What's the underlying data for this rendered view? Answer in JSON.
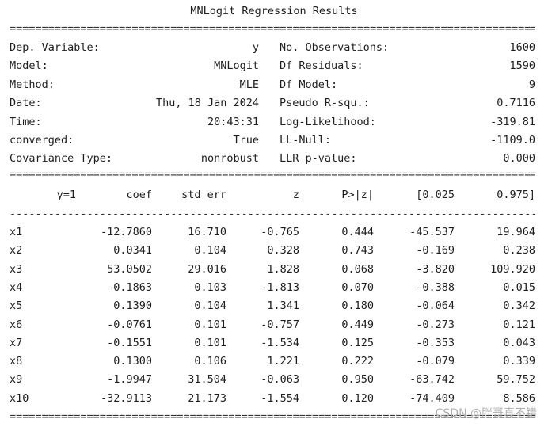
{
  "title": "MNLogit Regression Results",
  "summary_left": [
    {
      "label": "Dep. Variable:",
      "value": "y"
    },
    {
      "label": "Model:",
      "value": "MNLogit"
    },
    {
      "label": "Method:",
      "value": "MLE"
    },
    {
      "label": "Date:",
      "value": "Thu, 18 Jan 2024"
    },
    {
      "label": "Time:",
      "value": "20:43:31"
    },
    {
      "label": "converged:",
      "value": "True"
    },
    {
      "label": "Covariance Type:",
      "value": "nonrobust"
    }
  ],
  "summary_right": [
    {
      "label": "No. Observations:",
      "value": "1600"
    },
    {
      "label": "Df Residuals:",
      "value": "1590"
    },
    {
      "label": "Df Model:",
      "value": "9"
    },
    {
      "label": "Pseudo R-squ.:",
      "value": "0.7116"
    },
    {
      "label": "Log-Likelihood:",
      "value": "-319.81"
    },
    {
      "label": "LL-Null:",
      "value": "-1109.0"
    },
    {
      "label": "LLR p-value:",
      "value": "0.000"
    }
  ],
  "coef_header": [
    "y=1",
    "coef",
    "std err",
    "z",
    "P>|z|",
    "[0.025",
    "0.975]"
  ],
  "coef_rows": [
    [
      "x1",
      "-12.7860",
      "16.710",
      "-0.765",
      "0.444",
      "-45.537",
      "19.964"
    ],
    [
      "x2",
      "0.0341",
      "0.104",
      "0.328",
      "0.743",
      "-0.169",
      "0.238"
    ],
    [
      "x3",
      "53.0502",
      "29.016",
      "1.828",
      "0.068",
      "-3.820",
      "109.920"
    ],
    [
      "x4",
      "-0.1863",
      "0.103",
      "-1.813",
      "0.070",
      "-0.388",
      "0.015"
    ],
    [
      "x5",
      "0.1390",
      "0.104",
      "1.341",
      "0.180",
      "-0.064",
      "0.342"
    ],
    [
      "x6",
      "-0.0761",
      "0.101",
      "-0.757",
      "0.449",
      "-0.273",
      "0.121"
    ],
    [
      "x7",
      "-0.1551",
      "0.101",
      "-1.534",
      "0.125",
      "-0.353",
      "0.043"
    ],
    [
      "x8",
      "0.1300",
      "0.106",
      "1.221",
      "0.222",
      "-0.079",
      "0.339"
    ],
    [
      "x9",
      "-1.9947",
      "31.504",
      "-0.063",
      "0.950",
      "-63.742",
      "59.752"
    ],
    [
      "x10",
      "-32.9113",
      "21.173",
      "-1.554",
      "0.120",
      "-74.409",
      "8.586"
    ]
  ],
  "watermark": "CSDN @胖哥真不错"
}
